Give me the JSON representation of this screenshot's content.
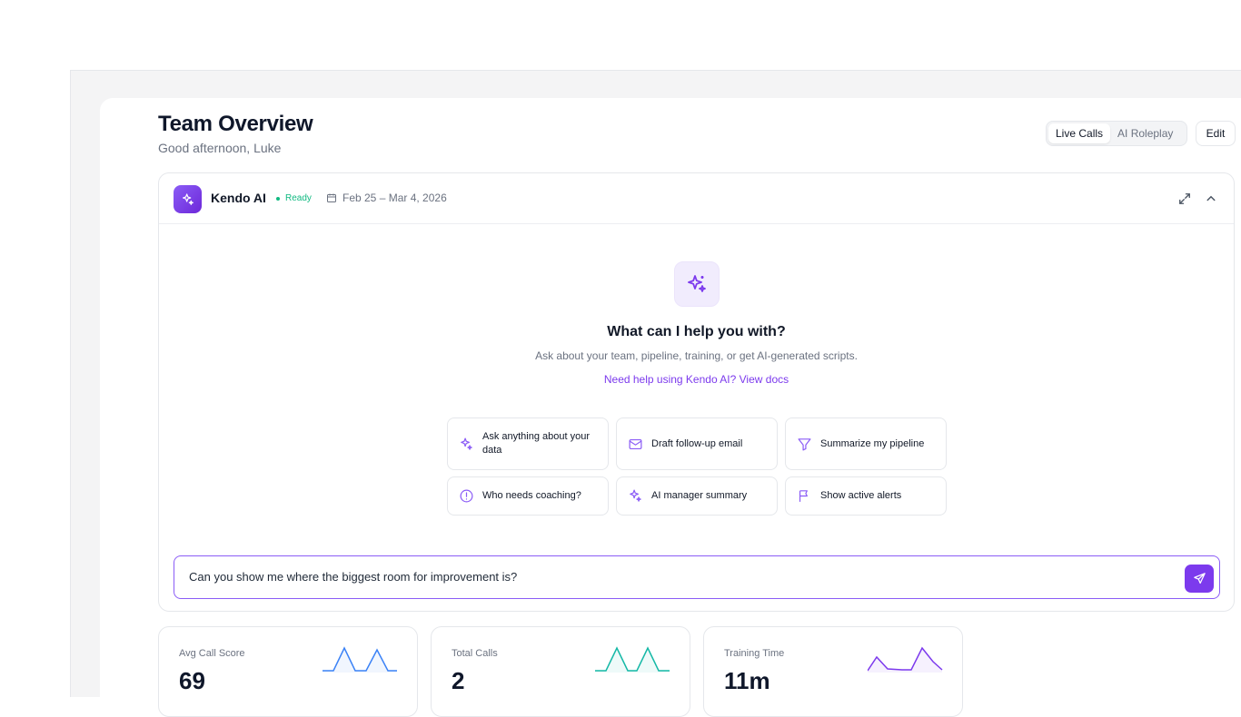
{
  "header": {
    "title": "Team Overview",
    "greeting": "Good afternoon, Luke",
    "tabs": [
      {
        "label": "Live Calls",
        "active": true
      },
      {
        "label": "AI Roleplay",
        "active": false
      }
    ],
    "edit_label": "Edit"
  },
  "assistant": {
    "name": "Kendo AI",
    "status": "Ready",
    "date_range": "Feb 25 – Mar 4, 2026",
    "heading": "What can I help you with?",
    "description": "Ask about your team, pipeline, training, or get AI-generated scripts.",
    "docs_link": "Need help using Kendo AI? View docs",
    "suggestions": [
      {
        "label": "Ask anything about your data",
        "icon": "sparkles-icon"
      },
      {
        "label": "Draft follow-up email",
        "icon": "mail-icon"
      },
      {
        "label": "Summarize my pipeline",
        "icon": "filter-icon"
      },
      {
        "label": "Who needs coaching?",
        "icon": "alert-circle-icon"
      },
      {
        "label": "AI manager summary",
        "icon": "sparkles-icon"
      },
      {
        "label": "Show active alerts",
        "icon": "flag-icon"
      }
    ],
    "input_value": "Can you show me where the biggest room for improvement is?",
    "accent": "#7c3aed"
  },
  "stats": [
    {
      "label": "Avg Call Score",
      "value": "69",
      "color": "#3b82f6"
    },
    {
      "label": "Total Calls",
      "value": "2",
      "color": "#14b8a6"
    },
    {
      "label": "Training Time",
      "value": "11m",
      "color": "#7c3aed"
    }
  ]
}
